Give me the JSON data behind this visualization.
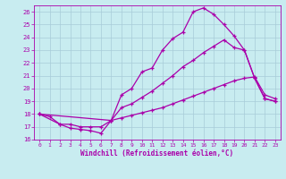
{
  "xlabel": "Windchill (Refroidissement éolien,°C)",
  "bg_color": "#c8ecf0",
  "grid_color": "#a8ccd8",
  "line_color": "#aa00aa",
  "xlim": [
    -0.5,
    23.5
  ],
  "ylim": [
    16,
    26.5
  ],
  "xticks": [
    0,
    1,
    2,
    3,
    4,
    5,
    6,
    7,
    8,
    9,
    10,
    11,
    12,
    13,
    14,
    15,
    16,
    17,
    18,
    19,
    20,
    21,
    22,
    23
  ],
  "yticks": [
    16,
    17,
    18,
    19,
    20,
    21,
    22,
    23,
    24,
    25,
    26
  ],
  "line1_x": [
    0,
    1,
    2,
    3,
    4,
    5,
    6,
    7,
    8,
    9,
    10,
    11,
    12,
    13,
    14,
    15,
    16,
    17,
    18,
    19,
    20,
    21,
    22,
    23
  ],
  "line1_y": [
    18.0,
    17.8,
    17.2,
    16.9,
    16.8,
    16.7,
    16.5,
    17.5,
    19.5,
    20.0,
    21.3,
    21.6,
    23.0,
    23.9,
    24.4,
    26.0,
    26.3,
    25.8,
    25.0,
    24.1,
    23.0,
    20.8,
    19.2,
    19.0
  ],
  "line2_x": [
    0,
    7,
    8,
    9,
    10,
    11,
    12,
    13,
    14,
    15,
    16,
    17,
    18,
    19,
    20,
    21,
    22,
    23
  ],
  "line2_y": [
    18.0,
    17.5,
    18.5,
    18.8,
    19.3,
    19.8,
    20.4,
    21.0,
    21.7,
    22.2,
    22.8,
    23.3,
    23.8,
    23.2,
    23.0,
    20.8,
    19.2,
    19.0
  ],
  "line3_x": [
    0,
    2,
    3,
    4,
    5,
    6,
    7,
    8,
    9,
    10,
    11,
    12,
    13,
    14,
    15,
    16,
    17,
    18,
    19,
    20,
    21,
    22,
    23
  ],
  "line3_y": [
    18.0,
    17.2,
    17.2,
    17.0,
    17.0,
    17.0,
    17.5,
    17.7,
    17.9,
    18.1,
    18.3,
    18.5,
    18.8,
    19.1,
    19.4,
    19.7,
    20.0,
    20.3,
    20.6,
    20.8,
    20.9,
    19.5,
    19.2
  ]
}
